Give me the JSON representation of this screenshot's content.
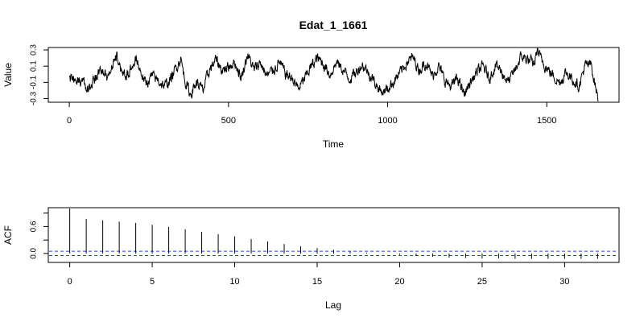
{
  "title": "Edat_1_1661",
  "chart_data": [
    {
      "type": "line",
      "title": "Edat_1_1661",
      "xlabel": "Time",
      "ylabel": "Value",
      "xlim": [
        -66,
        1727
      ],
      "ylim": [
        -0.345,
        0.33
      ],
      "xticks": [
        0,
        500,
        1000,
        1500
      ],
      "xtick_labels": [
        "0",
        "500",
        "1000",
        "1500"
      ],
      "yticks": [
        -0.3,
        -0.1,
        0.1,
        0.3
      ],
      "ytick_labels": [
        "-0.3",
        "-0.1",
        "0.1",
        "0.3"
      ],
      "grid": false,
      "n_points": 1661,
      "x_start": 1,
      "x_end": 1661,
      "series": [
        {
          "color": "#000000",
          "knots": [
            [
              1,
              -0.02
            ],
            [
              20,
              -0.12
            ],
            [
              40,
              -0.08
            ],
            [
              60,
              -0.18
            ],
            [
              80,
              -0.06
            ],
            [
              100,
              0.05
            ],
            [
              120,
              -0.02
            ],
            [
              140,
              0.15
            ],
            [
              150,
              0.22
            ],
            [
              160,
              0.1
            ],
            [
              180,
              -0.05
            ],
            [
              200,
              0.12
            ],
            [
              210,
              0.2
            ],
            [
              225,
              0.02
            ],
            [
              240,
              -0.12
            ],
            [
              260,
              -0.02
            ],
            [
              280,
              -0.08
            ],
            [
              300,
              -0.15
            ],
            [
              320,
              -0.05
            ],
            [
              340,
              0.12
            ],
            [
              350,
              0.2
            ],
            [
              362,
              -0.05
            ],
            [
              380,
              -0.25
            ],
            [
              400,
              -0.1
            ],
            [
              420,
              -0.2
            ],
            [
              440,
              0.05
            ],
            [
              460,
              0.18
            ],
            [
              480,
              0.05
            ],
            [
              500,
              0.1
            ],
            [
              520,
              0.15
            ],
            [
              540,
              -0.05
            ],
            [
              560,
              0.25
            ],
            [
              580,
              0.05
            ],
            [
              600,
              0.15
            ],
            [
              620,
              -0.02
            ],
            [
              640,
              0.05
            ],
            [
              660,
              0.15
            ],
            [
              680,
              0.0
            ],
            [
              700,
              -0.05
            ],
            [
              720,
              -0.18
            ],
            [
              740,
              -0.05
            ],
            [
              760,
              0.1
            ],
            [
              780,
              0.2
            ],
            [
              800,
              0.12
            ],
            [
              820,
              0.0
            ],
            [
              840,
              0.15
            ],
            [
              860,
              0.05
            ],
            [
              880,
              -0.05
            ],
            [
              900,
              0.02
            ],
            [
              920,
              0.12
            ],
            [
              940,
              0.02
            ],
            [
              960,
              -0.1
            ],
            [
              980,
              -0.22
            ],
            [
              1000,
              -0.18
            ],
            [
              1020,
              -0.08
            ],
            [
              1040,
              0.02
            ],
            [
              1060,
              0.15
            ],
            [
              1080,
              0.2
            ],
            [
              1100,
              0.05
            ],
            [
              1120,
              0.15
            ],
            [
              1140,
              -0.02
            ],
            [
              1160,
              0.1
            ],
            [
              1180,
              -0.08
            ],
            [
              1200,
              -0.15
            ],
            [
              1220,
              -0.05
            ],
            [
              1240,
              -0.25
            ],
            [
              1260,
              -0.1
            ],
            [
              1280,
              0.02
            ],
            [
              1300,
              0.1
            ],
            [
              1320,
              -0.05
            ],
            [
              1340,
              0.12
            ],
            [
              1360,
              0.02
            ],
            [
              1380,
              -0.1
            ],
            [
              1400,
              0.05
            ],
            [
              1420,
              0.22
            ],
            [
              1440,
              0.18
            ],
            [
              1460,
              0.12
            ],
            [
              1470,
              0.3
            ],
            [
              1480,
              0.2
            ],
            [
              1500,
              0.08
            ],
            [
              1520,
              -0.02
            ],
            [
              1540,
              -0.1
            ],
            [
              1560,
              0.02
            ],
            [
              1580,
              -0.05
            ],
            [
              1600,
              -0.15
            ],
            [
              1620,
              0.1
            ],
            [
              1640,
              0.12
            ],
            [
              1650,
              -0.1
            ],
            [
              1661,
              -0.3
            ]
          ]
        }
      ]
    },
    {
      "type": "bar",
      "xlabel": "Lag",
      "ylabel": "ACF",
      "xlim": [
        -1.3,
        33.3
      ],
      "ylim": [
        -0.2,
        1.02
      ],
      "xticks": [
        0,
        5,
        10,
        15,
        20,
        25,
        30
      ],
      "xtick_labels": [
        "0",
        "5",
        "10",
        "15",
        "20",
        "25",
        "30"
      ],
      "yticks": [
        0.0,
        0.3,
        0.6,
        0.9
      ],
      "ytick_labels": [
        "0.0",
        "",
        "0.6",
        ""
      ],
      "grid": false,
      "confidence_band": 0.048,
      "band_color": "#1f3fff",
      "lags": [
        0,
        1,
        2,
        3,
        4,
        5,
        6,
        7,
        8,
        9,
        10,
        11,
        12,
        13,
        14,
        15,
        16,
        17,
        18,
        19,
        20,
        21,
        22,
        23,
        24,
        25,
        26,
        27,
        28,
        29,
        30,
        31,
        32
      ],
      "values": [
        1.0,
        0.77,
        0.74,
        0.71,
        0.68,
        0.64,
        0.59,
        0.54,
        0.48,
        0.43,
        0.38,
        0.32,
        0.27,
        0.21,
        0.16,
        0.12,
        0.08,
        0.04,
        0.02,
        -0.01,
        -0.03,
        -0.05,
        -0.07,
        -0.09,
        -0.1,
        -0.11,
        -0.11,
        -0.12,
        -0.12,
        -0.12,
        -0.12,
        -0.12,
        -0.12
      ]
    }
  ]
}
